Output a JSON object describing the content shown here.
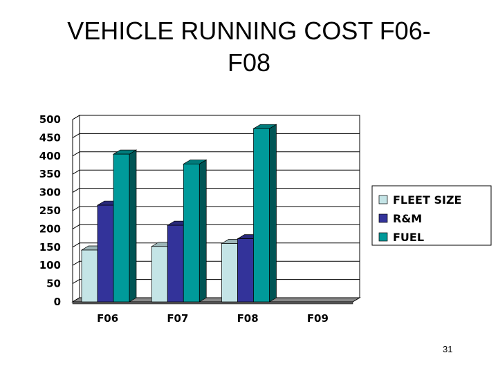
{
  "slide": {
    "title_line1": "VEHICLE RUNNING COST F06-",
    "title_line2": "F08",
    "page_number": "31"
  },
  "colors": {
    "fleet_size": "#c4e4e6",
    "rm": "#33339a",
    "fuel": "#009a9a",
    "floor": "#888888",
    "grid": "#000000"
  },
  "chart_data": {
    "type": "bar",
    "categories": [
      "F06",
      "F07",
      "F08",
      "F09"
    ],
    "series": [
      {
        "name": "FLEET SIZE",
        "values": [
          142,
          152,
          160,
          null
        ]
      },
      {
        "name": "R&M",
        "values": [
          265,
          210,
          173,
          null
        ]
      },
      {
        "name": "FUEL",
        "values": [
          405,
          378,
          475,
          null
        ]
      }
    ],
    "ylim": [
      0,
      500
    ],
    "yticks": [
      0,
      50,
      100,
      150,
      200,
      250,
      300,
      350,
      400,
      450,
      500
    ],
    "grid": true,
    "legend": "right",
    "title": "VEHICLE RUNNING COST F06-F08",
    "xlabel": "",
    "ylabel": ""
  }
}
